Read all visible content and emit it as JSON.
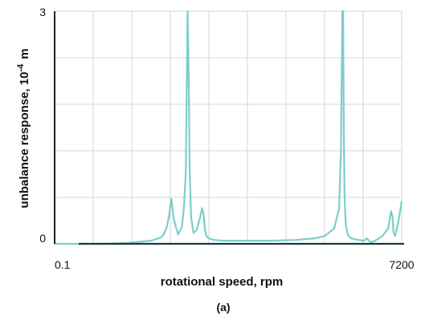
{
  "chart_data": {
    "type": "line",
    "title": "",
    "xlabel": "rotational speed, rpm",
    "ylabel": "unbalance response, 10",
    "ylabel_exponent": "-4",
    "ylabel_unit": "m",
    "x_tick_labels": [
      "0.1",
      "7200"
    ],
    "y_tick_labels": [
      "0",
      "3"
    ],
    "caption": "(a)",
    "xlim": [
      0.1,
      7200
    ],
    "ylim": [
      0,
      3
    ],
    "grid": true,
    "colors": {
      "series": "#7ecdc9",
      "baseline": "#1c3a37",
      "axis": "#222222",
      "grid": "#d6d6d6"
    },
    "baseline": {
      "x": [
        500,
        7200
      ],
      "values": [
        0,
        0
      ]
    },
    "series": [
      {
        "x": [
          0.1,
          500,
          1000,
          1500,
          2000,
          2200,
          2260,
          2320,
          2370,
          2420,
          2470,
          2560,
          2640,
          2680,
          2720,
          2740,
          2760,
          2780,
          2800,
          2830,
          2880,
          2950,
          3020,
          3060,
          3090,
          3120,
          3150,
          3200,
          3300,
          3500,
          4000,
          4500,
          5000,
          5400,
          5600,
          5800,
          5900,
          5940,
          5970,
          5985,
          6000,
          6015,
          6040,
          6080,
          6150,
          6300,
          6420,
          6480,
          6520,
          6560,
          6650,
          6800,
          6920,
          6980,
          7010,
          7030,
          7060,
          7120,
          7200
        ],
        "values": [
          0,
          0,
          0,
          0.01,
          0.04,
          0.08,
          0.12,
          0.2,
          0.35,
          0.58,
          0.32,
          0.12,
          0.22,
          0.45,
          0.9,
          2.0,
          3.0,
          2.2,
          1.0,
          0.35,
          0.14,
          0.18,
          0.35,
          0.46,
          0.38,
          0.18,
          0.1,
          0.07,
          0.05,
          0.04,
          0.04,
          0.04,
          0.05,
          0.07,
          0.1,
          0.2,
          0.45,
          1.2,
          3.0,
          3.0,
          1.4,
          0.6,
          0.25,
          0.12,
          0.07,
          0.05,
          0.04,
          0.07,
          0.04,
          0.02,
          0.04,
          0.1,
          0.2,
          0.42,
          0.35,
          0.15,
          0.1,
          0.25,
          0.55
        ]
      }
    ]
  }
}
